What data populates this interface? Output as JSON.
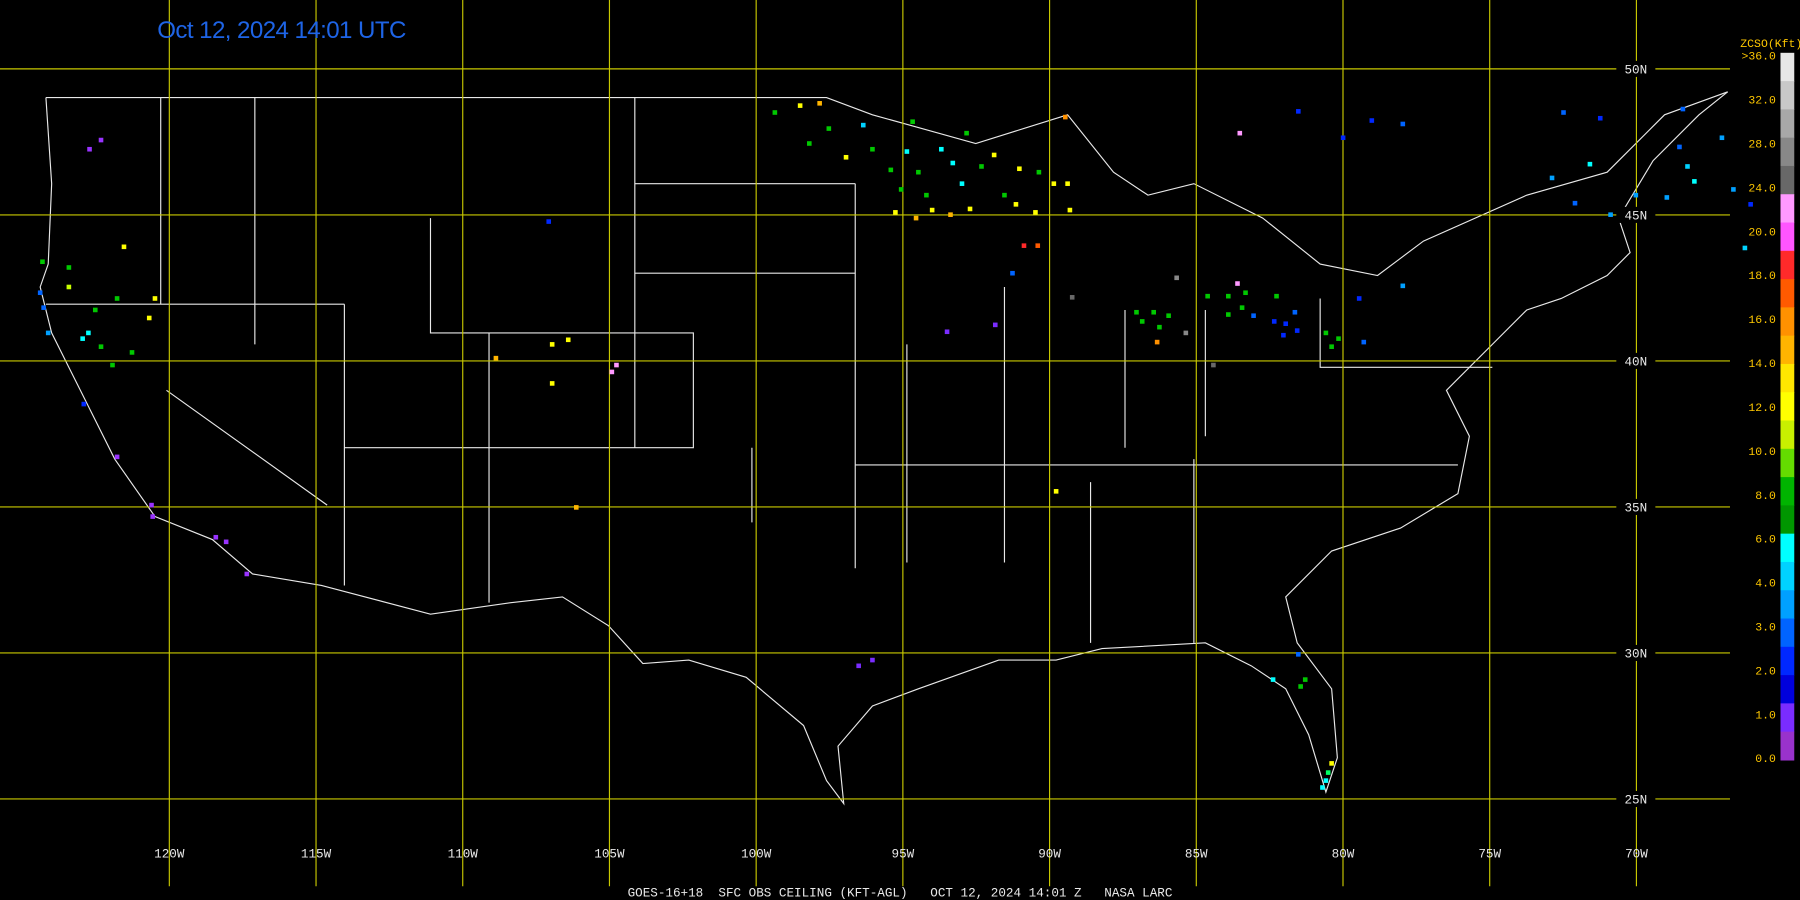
{
  "header": {
    "title": "Oct 12, 2024 14:01 UTC"
  },
  "map": {
    "longitude_labels": [
      "120W",
      "115W",
      "110W",
      "105W",
      "100W",
      "95W",
      "90W",
      "85W",
      "80W",
      "75W",
      "70W"
    ],
    "latitude_labels": [
      "50N",
      "45N",
      "40N",
      "35N",
      "30N",
      "25N"
    ]
  },
  "legend": {
    "title": "ZCSO(Kft)",
    "labels": [
      ">36.0",
      "32.0",
      "28.0",
      "24.0",
      "20.0",
      "18.0",
      "16.0",
      "14.0",
      "12.0",
      "10.0",
      "8.0",
      "6.0",
      "4.0",
      "3.0",
      "2.0",
      "1.0",
      "0.0"
    ]
  },
  "footer": {
    "caption": "GOES-16+18  SFC OBS CEILING (KFT-AGL)   OCT 12, 2024 14:01 Z   NASA LARC"
  }
}
